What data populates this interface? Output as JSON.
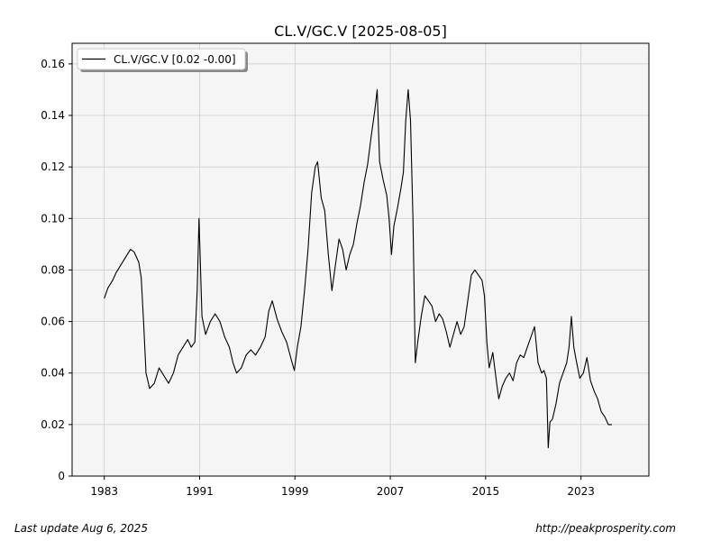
{
  "chart_data": {
    "type": "line",
    "title": "CL.V/GC.V  [2025-08-05]",
    "legend": {
      "entries": [
        "CL.V/GC.V [0.02 -0.00]"
      ],
      "placement": "top-left"
    },
    "x_ticks": [
      "1983",
      "1991",
      "1999",
      "2007",
      "2015",
      "2023"
    ],
    "x_tick_values": [
      1983,
      1991,
      1999,
      2007,
      2015,
      2023
    ],
    "y_ticks": [
      "0",
      "0.02",
      "0.04",
      "0.06",
      "0.08",
      "0.10",
      "0.12",
      "0.14",
      "0.16"
    ],
    "y_tick_values": [
      0,
      0.02,
      0.04,
      0.06,
      0.08,
      0.1,
      0.12,
      0.14,
      0.16
    ],
    "xlim": [
      1980.3,
      2028.7
    ],
    "ylim": [
      0,
      0.168
    ],
    "grid": true,
    "series": [
      {
        "name": "CL.V/GC.V [0.02 -0.00]",
        "color": "#000000",
        "x": [
          1983.0,
          1983.3,
          1983.7,
          1984.0,
          1984.4,
          1984.8,
          1985.2,
          1985.5,
          1985.7,
          1985.9,
          1986.1,
          1986.3,
          1986.5,
          1986.8,
          1987.2,
          1987.6,
          1988.0,
          1988.4,
          1988.8,
          1989.2,
          1989.6,
          1990.0,
          1990.3,
          1990.6,
          1990.8,
          1990.95,
          1991.2,
          1991.5,
          1991.9,
          1992.3,
          1992.7,
          1993.1,
          1993.5,
          1993.8,
          1994.1,
          1994.5,
          1994.9,
          1995.3,
          1995.7,
          1996.1,
          1996.5,
          1996.8,
          1997.1,
          1997.5,
          1997.9,
          1998.3,
          1998.7,
          1998.95,
          1999.2,
          1999.5,
          1999.8,
          2000.1,
          2000.4,
          2000.7,
          2000.9,
          2001.2,
          2001.5,
          2001.8,
          2002.1,
          2002.4,
          2002.7,
          2003.0,
          2003.3,
          2003.6,
          2003.9,
          2004.2,
          2004.5,
          2004.8,
          2005.1,
          2005.4,
          2005.7,
          2005.9,
          2006.1,
          2006.4,
          2006.7,
          2006.9,
          2007.1,
          2007.3,
          2007.6,
          2007.9,
          2008.1,
          2008.3,
          2008.5,
          2008.7,
          2008.9,
          2009.1,
          2009.3,
          2009.6,
          2009.9,
          2010.2,
          2010.5,
          2010.8,
          2011.1,
          2011.4,
          2011.7,
          2012.0,
          2012.3,
          2012.6,
          2012.9,
          2013.2,
          2013.5,
          2013.8,
          2014.1,
          2014.4,
          2014.7,
          2014.9,
          2015.1,
          2015.3,
          2015.6,
          2015.9,
          2016.1,
          2016.4,
          2016.7,
          2017.0,
          2017.3,
          2017.6,
          2017.9,
          2018.2,
          2018.5,
          2018.8,
          2019.1,
          2019.4,
          2019.7,
          2019.9,
          2020.1,
          2020.25,
          2020.4,
          2020.6,
          2020.9,
          2021.2,
          2021.5,
          2021.8,
          2022.0,
          2022.2,
          2022.4,
          2022.6,
          2022.9,
          2023.2,
          2023.5,
          2023.8,
          2024.1,
          2024.4,
          2024.7,
          2025.0,
          2025.3,
          2025.6
        ],
        "y": [
          0.069,
          0.073,
          0.076,
          0.079,
          0.082,
          0.085,
          0.088,
          0.087,
          0.085,
          0.083,
          0.077,
          0.06,
          0.04,
          0.034,
          0.036,
          0.042,
          0.039,
          0.036,
          0.04,
          0.047,
          0.05,
          0.053,
          0.05,
          0.052,
          0.072,
          0.1,
          0.062,
          0.055,
          0.06,
          0.063,
          0.06,
          0.054,
          0.05,
          0.044,
          0.04,
          0.042,
          0.047,
          0.049,
          0.047,
          0.05,
          0.054,
          0.064,
          0.068,
          0.061,
          0.056,
          0.052,
          0.045,
          0.041,
          0.05,
          0.058,
          0.072,
          0.088,
          0.11,
          0.12,
          0.122,
          0.108,
          0.103,
          0.086,
          0.072,
          0.082,
          0.092,
          0.088,
          0.08,
          0.086,
          0.09,
          0.098,
          0.105,
          0.114,
          0.121,
          0.132,
          0.142,
          0.15,
          0.122,
          0.115,
          0.109,
          0.1,
          0.086,
          0.097,
          0.104,
          0.112,
          0.118,
          0.138,
          0.15,
          0.138,
          0.1,
          0.044,
          0.052,
          0.062,
          0.07,
          0.068,
          0.066,
          0.06,
          0.063,
          0.061,
          0.056,
          0.05,
          0.055,
          0.06,
          0.055,
          0.058,
          0.068,
          0.078,
          0.08,
          0.078,
          0.076,
          0.07,
          0.052,
          0.042,
          0.048,
          0.037,
          0.03,
          0.035,
          0.038,
          0.04,
          0.037,
          0.044,
          0.047,
          0.046,
          0.05,
          0.054,
          0.058,
          0.044,
          0.04,
          0.041,
          0.038,
          0.011,
          0.021,
          0.022,
          0.028,
          0.036,
          0.04,
          0.044,
          0.05,
          0.062,
          0.05,
          0.045,
          0.038,
          0.04,
          0.046,
          0.037,
          0.033,
          0.03,
          0.025,
          0.023,
          0.02,
          0.02
        ]
      }
    ]
  },
  "footer": {
    "left": "Last update Aug  6, 2025",
    "right": "http://peakprosperity.com"
  }
}
